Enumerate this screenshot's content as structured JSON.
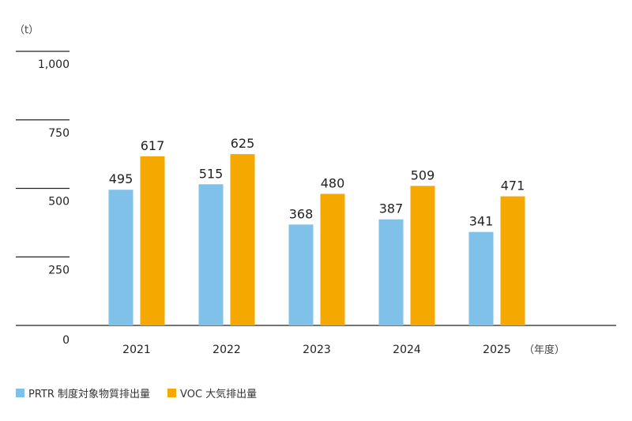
{
  "chart_data": {
    "type": "bar",
    "unit_label": "（t）",
    "x_unit_label": "（年度）",
    "categories": [
      "2021",
      "2022",
      "2023",
      "2024",
      "2025"
    ],
    "series": [
      {
        "name": "PRTR 制度対象物質排出量",
        "color": "#7fc1e8",
        "values": [
          495,
          515,
          368,
          387,
          341
        ]
      },
      {
        "name": "VOC 大気排出量",
        "color": "#f5a800",
        "values": [
          617,
          625,
          480,
          509,
          471
        ]
      }
    ],
    "yticks": [
      {
        "value": 0,
        "label": "0"
      },
      {
        "value": 250,
        "label": "250"
      },
      {
        "value": 500,
        "label": "500"
      },
      {
        "value": 750,
        "label": "750"
      },
      {
        "value": 1000,
        "label": "1,000"
      }
    ],
    "ylim": [
      0,
      1000
    ],
    "legend_position": "bottom-left"
  }
}
